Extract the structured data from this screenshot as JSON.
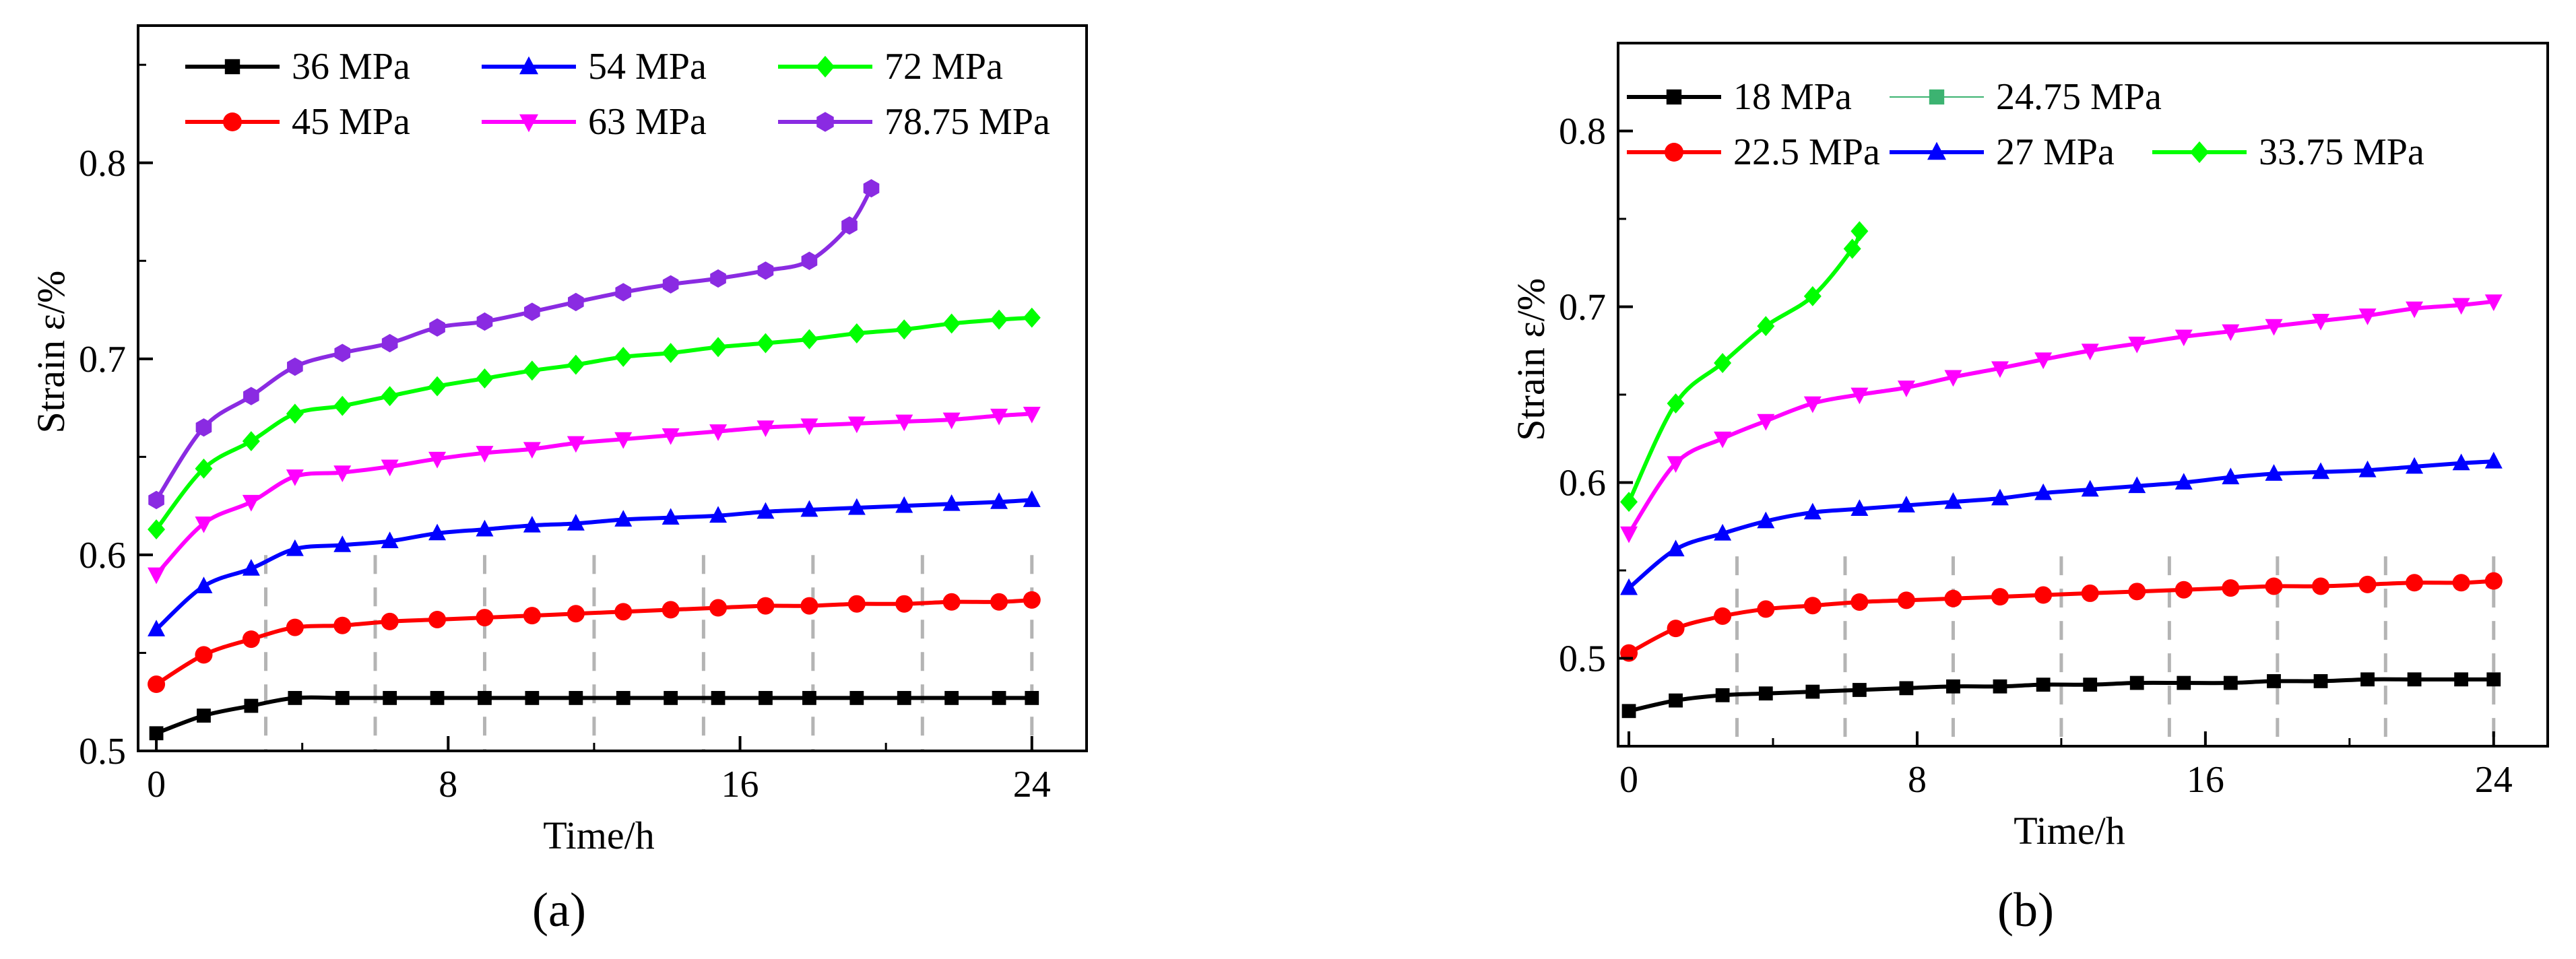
{
  "panels": [
    {
      "label": "(a)",
      "chart_data": {
        "type": "line",
        "xlabel": "Time/h",
        "ylabel": "Strain ε/%",
        "xlim": [
          -0.5,
          25.5
        ],
        "ylim": [
          0.5,
          0.87
        ],
        "xticks": [
          0,
          8,
          16,
          24
        ],
        "yticks": [
          0.5,
          0.6,
          0.7,
          0.8
        ],
        "vlines": [
          3,
          6,
          9,
          12,
          15,
          18,
          21,
          24
        ],
        "legend_position": "top",
        "legend_columns": 3,
        "legend_items": [
          "36 MPa",
          "45 MPa",
          "54 MPa",
          "63 MPa",
          "72 MPa",
          "78.75 MPa"
        ],
        "series": [
          {
            "name": "36 MPa",
            "color": "#000000",
            "marker": "square",
            "points": [
              [
                0,
                0.509
              ],
              [
                1.3,
                0.518
              ],
              [
                2.6,
                0.523
              ],
              [
                3.8,
                0.527
              ],
              [
                5.1,
                0.527
              ],
              [
                6.4,
                0.527
              ],
              [
                7.7,
                0.527
              ],
              [
                9,
                0.527
              ],
              [
                10.3,
                0.527
              ],
              [
                11.5,
                0.527
              ],
              [
                12.8,
                0.527
              ],
              [
                14.1,
                0.527
              ],
              [
                15.4,
                0.527
              ],
              [
                16.7,
                0.527
              ],
              [
                17.9,
                0.527
              ],
              [
                19.2,
                0.527
              ],
              [
                20.5,
                0.527
              ],
              [
                21.8,
                0.527
              ],
              [
                23.1,
                0.527
              ],
              [
                24,
                0.527
              ]
            ]
          },
          {
            "name": "45 MPa",
            "color": "#ff0000",
            "marker": "circle",
            "points": [
              [
                0,
                0.534
              ],
              [
                1.3,
                0.549
              ],
              [
                2.6,
                0.557
              ],
              [
                3.8,
                0.563
              ],
              [
                5.1,
                0.564
              ],
              [
                6.4,
                0.566
              ],
              [
                7.7,
                0.567
              ],
              [
                9,
                0.568
              ],
              [
                10.3,
                0.569
              ],
              [
                11.5,
                0.57
              ],
              [
                12.8,
                0.571
              ],
              [
                14.1,
                0.572
              ],
              [
                15.4,
                0.573
              ],
              [
                16.7,
                0.574
              ],
              [
                17.9,
                0.574
              ],
              [
                19.2,
                0.575
              ],
              [
                20.5,
                0.575
              ],
              [
                21.8,
                0.576
              ],
              [
                23.1,
                0.576
              ],
              [
                24,
                0.577
              ]
            ]
          },
          {
            "name": "54 MPa",
            "color": "#0000ff",
            "marker": "triangle-up",
            "points": [
              [
                0,
                0.562
              ],
              [
                1.3,
                0.584
              ],
              [
                2.6,
                0.593
              ],
              [
                3.8,
                0.603
              ],
              [
                5.1,
                0.605
              ],
              [
                6.4,
                0.607
              ],
              [
                7.7,
                0.611
              ],
              [
                9,
                0.613
              ],
              [
                10.3,
                0.615
              ],
              [
                11.5,
                0.616
              ],
              [
                12.8,
                0.618
              ],
              [
                14.1,
                0.619
              ],
              [
                15.4,
                0.62
              ],
              [
                16.7,
                0.622
              ],
              [
                17.9,
                0.623
              ],
              [
                19.2,
                0.624
              ],
              [
                20.5,
                0.625
              ],
              [
                21.8,
                0.626
              ],
              [
                23.1,
                0.627
              ],
              [
                24,
                0.628
              ]
            ]
          },
          {
            "name": "63 MPa",
            "color": "#ff00ff",
            "marker": "triangle-down",
            "points": [
              [
                0,
                0.59
              ],
              [
                1.3,
                0.616
              ],
              [
                2.6,
                0.627
              ],
              [
                3.8,
                0.64
              ],
              [
                5.1,
                0.642
              ],
              [
                6.4,
                0.645
              ],
              [
                7.7,
                0.649
              ],
              [
                9,
                0.652
              ],
              [
                10.3,
                0.654
              ],
              [
                11.5,
                0.657
              ],
              [
                12.8,
                0.659
              ],
              [
                14.1,
                0.661
              ],
              [
                15.4,
                0.663
              ],
              [
                16.7,
                0.665
              ],
              [
                17.9,
                0.666
              ],
              [
                19.2,
                0.667
              ],
              [
                20.5,
                0.668
              ],
              [
                21.8,
                0.669
              ],
              [
                23.1,
                0.671
              ],
              [
                24,
                0.672
              ]
            ]
          },
          {
            "name": "72 MPa",
            "color": "#00ff00",
            "marker": "diamond",
            "points": [
              [
                0,
                0.613
              ],
              [
                1.3,
                0.644
              ],
              [
                2.6,
                0.658
              ],
              [
                3.8,
                0.672
              ],
              [
                5.1,
                0.676
              ],
              [
                6.4,
                0.681
              ],
              [
                7.7,
                0.686
              ],
              [
                9,
                0.69
              ],
              [
                10.3,
                0.694
              ],
              [
                11.5,
                0.697
              ],
              [
                12.8,
                0.701
              ],
              [
                14.1,
                0.703
              ],
              [
                15.4,
                0.706
              ],
              [
                16.7,
                0.708
              ],
              [
                17.9,
                0.71
              ],
              [
                19.2,
                0.713
              ],
              [
                20.5,
                0.715
              ],
              [
                21.8,
                0.718
              ],
              [
                23.1,
                0.72
              ],
              [
                24,
                0.721
              ]
            ]
          },
          {
            "name": "78.75 MPa",
            "color": "#8a2be2",
            "marker": "hexagon",
            "points": [
              [
                0,
                0.628
              ],
              [
                1.3,
                0.665
              ],
              [
                2.6,
                0.681
              ],
              [
                3.8,
                0.696
              ],
              [
                5.1,
                0.703
              ],
              [
                6.4,
                0.708
              ],
              [
                7.7,
                0.716
              ],
              [
                9,
                0.719
              ],
              [
                10.3,
                0.724
              ],
              [
                11.5,
                0.729
              ],
              [
                12.8,
                0.734
              ],
              [
                14.1,
                0.738
              ],
              [
                15.4,
                0.741
              ],
              [
                16.7,
                0.745
              ],
              [
                17.9,
                0.75
              ],
              [
                19,
                0.768
              ],
              [
                19.6,
                0.787
              ]
            ]
          }
        ]
      }
    },
    {
      "label": "(b)",
      "chart_data": {
        "type": "line",
        "xlabel": "Time/h",
        "ylabel": "Strain ε/%",
        "xlim": [
          -0.3,
          25.5
        ],
        "ylim": [
          0.45,
          0.85
        ],
        "xticks": [
          0,
          8,
          16,
          24
        ],
        "yticks": [
          0.5,
          0.6,
          0.7,
          0.8
        ],
        "vlines": [
          3,
          6,
          9,
          12,
          15,
          18,
          21,
          24
        ],
        "legend_position": "top",
        "legend_columns": 3,
        "legend_items": [
          "18 MPa",
          "24.75 MPa",
          "22.5 MPa",
          "27 MPa",
          "33.75 MPa"
        ],
        "series": [
          {
            "name": "18 MPa",
            "color": "#000000",
            "marker": "square",
            "points": [
              [
                0,
                0.47
              ],
              [
                1.3,
                0.476
              ],
              [
                2.6,
                0.479
              ],
              [
                3.8,
                0.48
              ],
              [
                5.1,
                0.481
              ],
              [
                6.4,
                0.482
              ],
              [
                7.7,
                0.483
              ],
              [
                9,
                0.484
              ],
              [
                10.3,
                0.484
              ],
              [
                11.5,
                0.485
              ],
              [
                12.8,
                0.485
              ],
              [
                14.1,
                0.486
              ],
              [
                15.4,
                0.486
              ],
              [
                16.7,
                0.486
              ],
              [
                17.9,
                0.487
              ],
              [
                19.2,
                0.487
              ],
              [
                20.5,
                0.488
              ],
              [
                21.8,
                0.488
              ],
              [
                23.1,
                0.488
              ],
              [
                24,
                0.488
              ]
            ]
          },
          {
            "name": "22.5 MPa",
            "color": "#ff0000",
            "marker": "circle",
            "points": [
              [
                0,
                0.503
              ],
              [
                1.3,
                0.517
              ],
              [
                2.6,
                0.524
              ],
              [
                3.8,
                0.528
              ],
              [
                5.1,
                0.53
              ],
              [
                6.4,
                0.532
              ],
              [
                7.7,
                0.533
              ],
              [
                9,
                0.534
              ],
              [
                10.3,
                0.535
              ],
              [
                11.5,
                0.536
              ],
              [
                12.8,
                0.537
              ],
              [
                14.1,
                0.538
              ],
              [
                15.4,
                0.539
              ],
              [
                16.7,
                0.54
              ],
              [
                17.9,
                0.541
              ],
              [
                19.2,
                0.541
              ],
              [
                20.5,
                0.542
              ],
              [
                21.8,
                0.543
              ],
              [
                23.1,
                0.543
              ],
              [
                24,
                0.544
              ]
            ]
          },
          {
            "name": "27 MPa",
            "color": "#0000ff",
            "marker": "triangle-up",
            "points": [
              [
                0,
                0.54
              ],
              [
                1.3,
                0.562
              ],
              [
                2.6,
                0.571
              ],
              [
                3.8,
                0.578
              ],
              [
                5.1,
                0.583
              ],
              [
                6.4,
                0.585
              ],
              [
                7.7,
                0.587
              ],
              [
                9,
                0.589
              ],
              [
                10.3,
                0.591
              ],
              [
                11.5,
                0.594
              ],
              [
                12.8,
                0.596
              ],
              [
                14.1,
                0.598
              ],
              [
                15.4,
                0.6
              ],
              [
                16.7,
                0.603
              ],
              [
                17.9,
                0.605
              ],
              [
                19.2,
                0.606
              ],
              [
                20.5,
                0.607
              ],
              [
                21.8,
                0.609
              ],
              [
                23.1,
                0.611
              ],
              [
                24,
                0.612
              ]
            ]
          },
          {
            "name": "",
            "color": "#ff00ff",
            "marker": "triangle-down",
            "points": [
              [
                0,
                0.571
              ],
              [
                1.3,
                0.611
              ],
              [
                2.6,
                0.625
              ],
              [
                3.8,
                0.635
              ],
              [
                5.1,
                0.645
              ],
              [
                6.4,
                0.65
              ],
              [
                7.7,
                0.654
              ],
              [
                9,
                0.66
              ],
              [
                10.3,
                0.665
              ],
              [
                11.5,
                0.67
              ],
              [
                12.8,
                0.675
              ],
              [
                14.1,
                0.679
              ],
              [
                15.4,
                0.683
              ],
              [
                16.7,
                0.686
              ],
              [
                17.9,
                0.689
              ],
              [
                19.2,
                0.692
              ],
              [
                20.5,
                0.695
              ],
              [
                21.8,
                0.699
              ],
              [
                23.1,
                0.701
              ],
              [
                24,
                0.703
              ]
            ]
          },
          {
            "name": "33.75 MPa",
            "color": "#00ff00",
            "marker": "diamond",
            "points": [
              [
                0,
                0.589
              ],
              [
                1.3,
                0.645
              ],
              [
                2.6,
                0.668
              ],
              [
                3.8,
                0.689
              ],
              [
                5.1,
                0.706
              ],
              [
                6.2,
                0.733
              ],
              [
                6.4,
                0.743
              ]
            ]
          },
          {
            "name": "24.75 MPa",
            "color": "#3cb371",
            "marker": "square",
            "legend_only": true,
            "points": []
          }
        ]
      }
    }
  ]
}
